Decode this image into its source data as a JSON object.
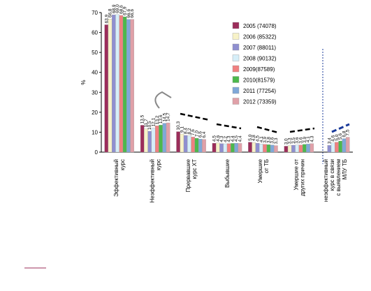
{
  "chart_data": {
    "type": "bar",
    "y_label": "%",
    "categories": [
      "Эффективный\nкурс",
      "Неэффективный\nкурс",
      "Прервавшие\nкурс ХТ",
      "Выбывшие",
      "Умершие\nот ТБ",
      "Умершие от\nдругих причин",
      "неэффективный\nкурс в связи\nс выявлением\nМЛУ ТБ"
    ],
    "ylim": [
      0,
      70
    ],
    "yticks": [
      0,
      10,
      20,
      30,
      40,
      50,
      60,
      70
    ],
    "series": [
      {
        "name": "2005 (74078)",
        "color": "#9b2d5a",
        "values": [
          63.9,
          13.5,
          10.3,
          4.5,
          5.0,
          3.0,
          null
        ],
        "value_labels": [
          "63,9",
          "13,5",
          "10,3",
          "4,5",
          "5,0",
          "3,0",
          null
        ]
      },
      {
        "name": "2006 (85322)",
        "color": "#f7f2c8",
        "values": [
          66.8,
          11.7,
          9.1,
          4.6,
          4.8,
          3.3,
          null
        ],
        "value_labels": [
          "66,8",
          "11,7",
          "9,1",
          "4,6",
          "4,8",
          "3,3",
          null
        ]
      },
      {
        "name": "2007 (88011)",
        "color": "#8f8fd0",
        "values": [
          68.9,
          10.5,
          8.4,
          4.3,
          4.5,
          3.5,
          3.4
        ],
        "value_labels": [
          "68,9",
          "10,5",
          "8,4",
          "4,3",
          "4,5",
          "3,5",
          "3,4"
        ]
      },
      {
        "name": "2008 (90132)",
        "color": "#d6eef8",
        "values": [
          69.0,
          12.1,
          8.2,
          4.2,
          4.1,
          3.6,
          4.6
        ],
        "value_labels": [
          "69,0",
          "12,1",
          "8,2",
          "4,2",
          "4,1",
          "3,6",
          "4,6"
        ]
      },
      {
        "name": "2009(87589)",
        "color": "#f08080",
        "values": [
          68.6,
          13.2,
          7.6,
          4.3,
          3.9,
          3.6,
          5.0
        ],
        "value_labels": [
          "68,6",
          "13,2",
          "7,6",
          "4,3",
          "3,9",
          "3,6",
          "5,0"
        ]
      },
      {
        "name": "2010(81579)",
        "color": "#4cb84c",
        "values": [
          67.9,
          13.6,
          7.0,
          4.4,
          3.8,
          3.9,
          5.6
        ],
        "value_labels": [
          "67,9",
          "13,6",
          "7,0",
          "4,4",
          "3,8",
          "3,9",
          "5,6"
        ]
      },
      {
        "name": "2011 (77254)",
        "color": "#7fa8d8",
        "values": [
          66.6,
          14.5,
          6.6,
          4.5,
          3.6,
          4.1,
          6.8
        ],
        "value_labels": [
          "66,6",
          "14,5",
          "6,6",
          "4,5",
          "3,6",
          "4,1",
          "6,8"
        ]
      },
      {
        "name": "2012 (73359)",
        "color": "#e0a0a8",
        "values": [
          66.6,
          14.7,
          6.4,
          4.4,
          3.3,
          4.3,
          7.5
        ],
        "value_labels": [
          "66,6",
          "14,7",
          "6,4",
          "4,4",
          "3,3",
          "4,3",
          "7,5"
        ]
      }
    ]
  }
}
